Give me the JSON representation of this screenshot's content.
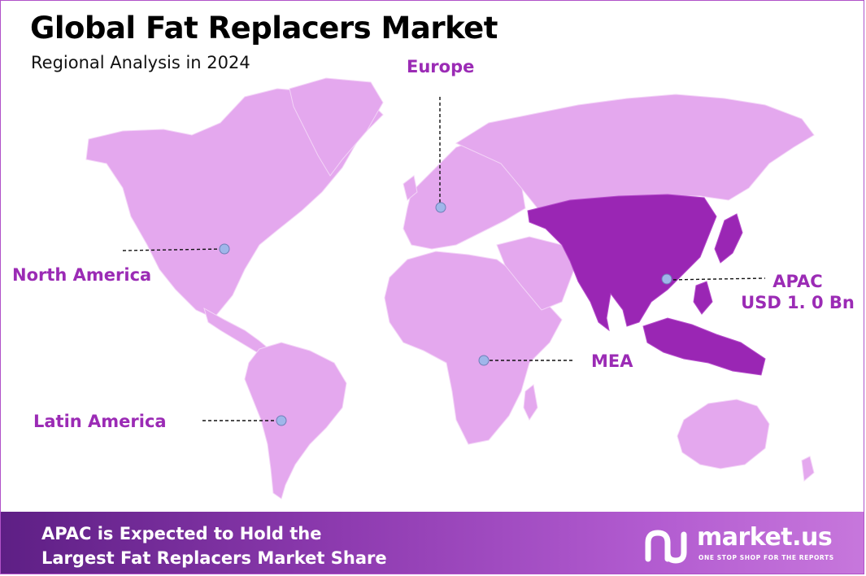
{
  "header": {
    "title": "Global Fat Replacers Market",
    "subtitle": "Regional Analysis in 2024"
  },
  "regions": [
    {
      "id": "north-america",
      "name": "North America",
      "value": "",
      "highlighted": false
    },
    {
      "id": "europe",
      "name": "Europe",
      "value": "",
      "highlighted": false
    },
    {
      "id": "apac",
      "name": "APAC",
      "value": "USD 1. 0 Bn",
      "highlighted": true
    },
    {
      "id": "mea",
      "name": "MEA",
      "value": "",
      "highlighted": false
    },
    {
      "id": "latin-america",
      "name": "Latin America",
      "value": "",
      "highlighted": false
    }
  ],
  "footer": {
    "line1": "APAC is Expected to Hold the",
    "line2": "Largest Fat Replacers Market Share"
  },
  "brand": {
    "name": "market.us",
    "tagline": "ONE STOP SHOP FOR THE REPORTS"
  },
  "colors": {
    "land": "#e4a8ee",
    "highlight": "#9a26b4",
    "label": "#9b2bb5",
    "marker": "#9fb6ea",
    "footer_start": "#5e1f85",
    "footer_end": "#c777dc"
  }
}
